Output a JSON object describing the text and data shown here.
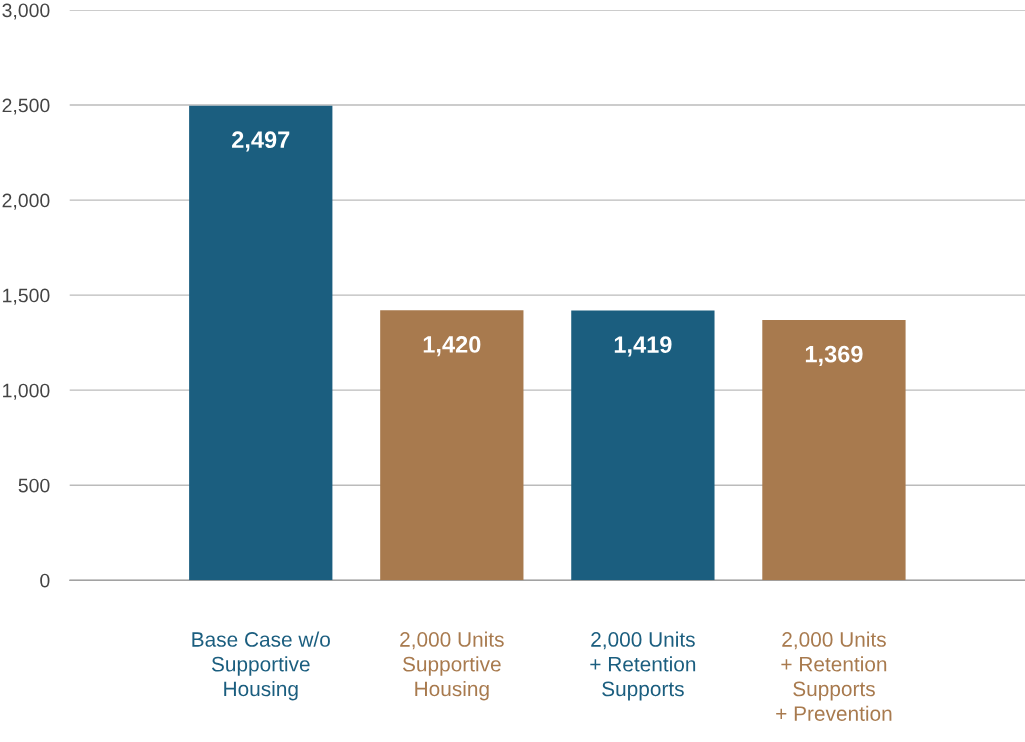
{
  "chart_data": {
    "type": "bar",
    "categories": [
      "Base Case w/o\nSupportive\nHousing",
      "2,000 Units\nSupportive\nHousing",
      "2,000 Units\n+ Retention\nSupports",
      "2,000 Units\n+ Retention\nSupports\n+ Prevention"
    ],
    "values": [
      2497,
      1420,
      1419,
      1369
    ],
    "colors": [
      "#1b5e7f",
      "#a87a4e",
      "#1b5e7f",
      "#a87a4e"
    ],
    "value_labels": [
      "2,497",
      "1,420",
      "1,419",
      "1,369"
    ],
    "ylim": [
      0,
      3000
    ],
    "yticks": [
      {
        "value": 0,
        "label": "0"
      },
      {
        "value": 500,
        "label": "500"
      },
      {
        "value": 1000,
        "label": "1,000"
      },
      {
        "value": 1500,
        "label": "1,500"
      },
      {
        "value": 2000,
        "label": "2,000"
      },
      {
        "value": 2500,
        "label": "2,500"
      },
      {
        "value": 3000,
        "label": "3,000"
      }
    ],
    "grid": "y",
    "legend": false
  }
}
